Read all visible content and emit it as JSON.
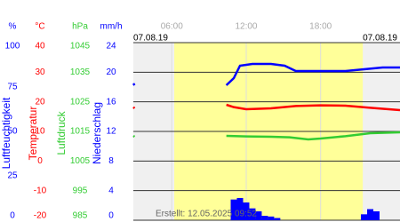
{
  "chart_data": {
    "type": "line",
    "date_left": "07.08.19",
    "date_right": "07.08.19",
    "footer": "Erstellt: 12.05.2025 09:52",
    "xlim": [
      2.9,
      24.4
    ],
    "xticks": [
      {
        "value": 6,
        "label": "06:00"
      },
      {
        "value": 12,
        "label": "12:00"
      },
      {
        "value": 18,
        "label": "18:00"
      }
    ],
    "daylight": [
      6.2,
      21.4
    ],
    "grid": true,
    "axes": [
      {
        "unit": "%",
        "label": "Luftfeuchtigkeit",
        "color": "#0000ff",
        "ylim": [
          0,
          100
        ],
        "yticks": [
          0,
          25,
          50,
          75,
          100
        ]
      },
      {
        "unit": "°C",
        "label": "Temperatur",
        "color": "#ff0000",
        "ylim": [
          -20,
          40
        ],
        "yticks": [
          -20,
          -10,
          0,
          10,
          20,
          30,
          40
        ]
      },
      {
        "unit": "hPa",
        "label": "Luftdruck",
        "color": "#33cc33",
        "ylim": [
          985,
          1045
        ],
        "yticks": [
          985,
          995,
          1005,
          1015,
          1025,
          1035,
          1045
        ]
      },
      {
        "unit": "mm/h",
        "label": "Niederschlag",
        "color": "#0000ff",
        "ylim": [
          0,
          24
        ],
        "yticks": [
          0,
          4,
          8,
          12,
          16,
          20,
          24
        ]
      }
    ],
    "series": [
      {
        "name": "Luftfeuchtigkeit",
        "axis": 0,
        "kind": "line",
        "color": "#0000ff",
        "x": [
          2.9,
          3.0,
          6,
          10.4,
          11.0,
          11.5,
          12.5,
          14,
          15.1,
          16,
          18,
          20,
          21.5,
          23,
          24.4
        ],
        "values": [
          77,
          76,
          null,
          76,
          80,
          87,
          88,
          88,
          87,
          84,
          84,
          84,
          85,
          86,
          86
        ]
      },
      {
        "name": "Temperatur",
        "axis": 1,
        "kind": "line",
        "color": "#ff0000",
        "x": [
          2.9,
          3.0,
          6,
          10.4,
          11,
          12,
          14,
          16,
          18,
          20,
          22,
          24.4
        ],
        "values": [
          18.2,
          17.8,
          null,
          19,
          18.2,
          17.5,
          17.8,
          18.6,
          18.8,
          18.7,
          18,
          17.2
        ]
      },
      {
        "name": "Luftdruck",
        "axis": 2,
        "kind": "line",
        "color": "#33cc33",
        "x": [
          2.9,
          3.0,
          6,
          10.4,
          12,
          14,
          15.5,
          17,
          18,
          20,
          22,
          24.4
        ],
        "values": [
          1013.5,
          1013.2,
          null,
          1013.5,
          1013.3,
          1013.2,
          1013.0,
          1012.3,
          1012.6,
          1013.4,
          1014.4,
          1014.7
        ]
      },
      {
        "name": "Niederschlag",
        "axis": 3,
        "kind": "bar",
        "color": "#0000ff",
        "x": [
          11.0,
          11.5,
          12,
          12.5,
          13,
          13.5,
          14,
          14.5,
          21.5,
          22,
          22.5
        ],
        "values": [
          2.8,
          3.0,
          2.4,
          1.6,
          1.2,
          0.6,
          0.5,
          0.3,
          0.8,
          1.5,
          1.2
        ]
      }
    ]
  }
}
